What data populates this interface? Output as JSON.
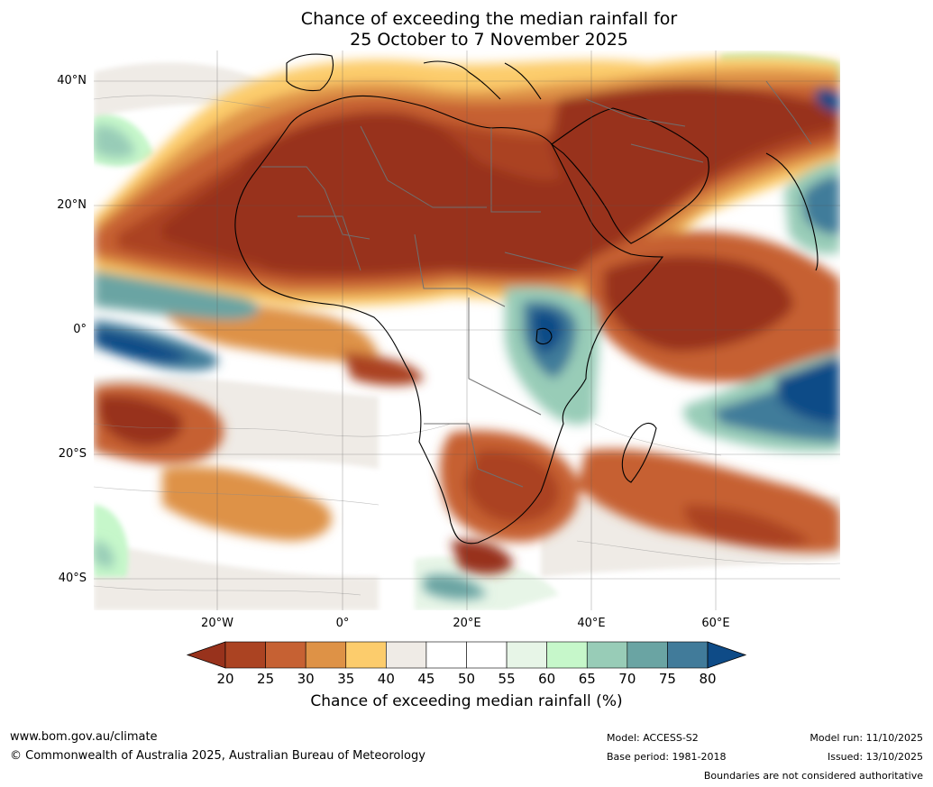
{
  "title": {
    "line1": "Chance of exceeding the median rainfall for",
    "line2": "25 October to 7 November 2025"
  },
  "map": {
    "lat_labels": [
      "40°N",
      "20°N",
      "0°",
      "20°S",
      "40°S"
    ],
    "lon_labels": [
      "20°W",
      "0°",
      "20°E",
      "40°E",
      "60°E"
    ],
    "lon_range": [
      -40,
      80
    ],
    "lat_range": [
      -45,
      45
    ]
  },
  "colorbar": {
    "ticks": [
      "20",
      "25",
      "30",
      "35",
      "40",
      "45",
      "50",
      "55",
      "60",
      "65",
      "70",
      "75",
      "80"
    ],
    "colors": [
      "#98321c",
      "#ab4322",
      "#c66133",
      "#de9246",
      "#fccc6c",
      "#efebe6",
      "#ffffff",
      "#ffffff",
      "#e7f5e7",
      "#c6f7ca",
      "#98ccb7",
      "#6aa4a3",
      "#417b9a",
      "#0e4b87"
    ],
    "label": "Chance of exceeding median rainfall (%)"
  },
  "footer": {
    "website": "www.bom.gov.au/climate",
    "copyright": "© Commonwealth of Australia 2025, Australian Bureau of Meteorology",
    "model": "Model: ACCESS-S2",
    "base_period": "Base period: 1981-2018",
    "model_run": "Model run: 11/10/2025",
    "issued": "Issued: 13/10/2025",
    "disclaimer": "Boundaries are not considered authoritative"
  }
}
